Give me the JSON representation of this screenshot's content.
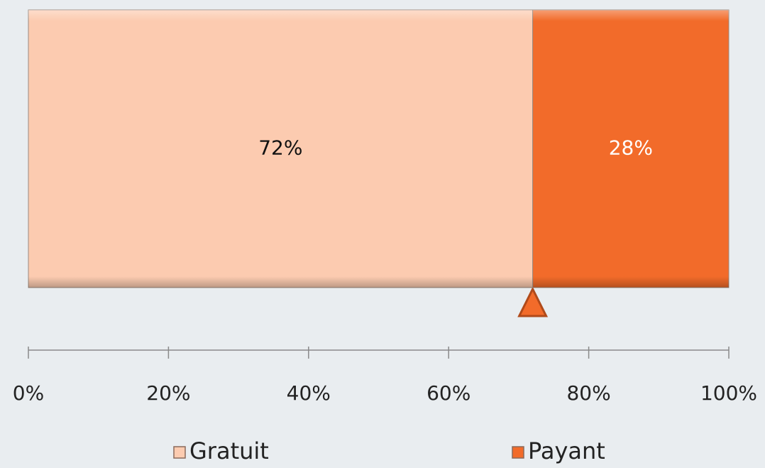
{
  "chart_data": {
    "type": "stacked_bar_horizontal",
    "series": [
      {
        "name": "Gratuit",
        "color": "#fccbb0",
        "values": [
          72
        ],
        "value_labels": [
          "72%"
        ]
      },
      {
        "name": "Payant",
        "color": "#f26b2a",
        "values": [
          28
        ],
        "value_labels": [
          "28%"
        ]
      }
    ],
    "xlim": [
      0,
      100
    ],
    "xticks": [
      {
        "value": 0,
        "label": "0%"
      },
      {
        "value": 20,
        "label": "20%"
      },
      {
        "value": 40,
        "label": "40%"
      },
      {
        "value": 60,
        "label": "60%"
      },
      {
        "value": 80,
        "label": "80%"
      },
      {
        "value": 100,
        "label": "100%"
      }
    ],
    "legend": "bottom"
  }
}
